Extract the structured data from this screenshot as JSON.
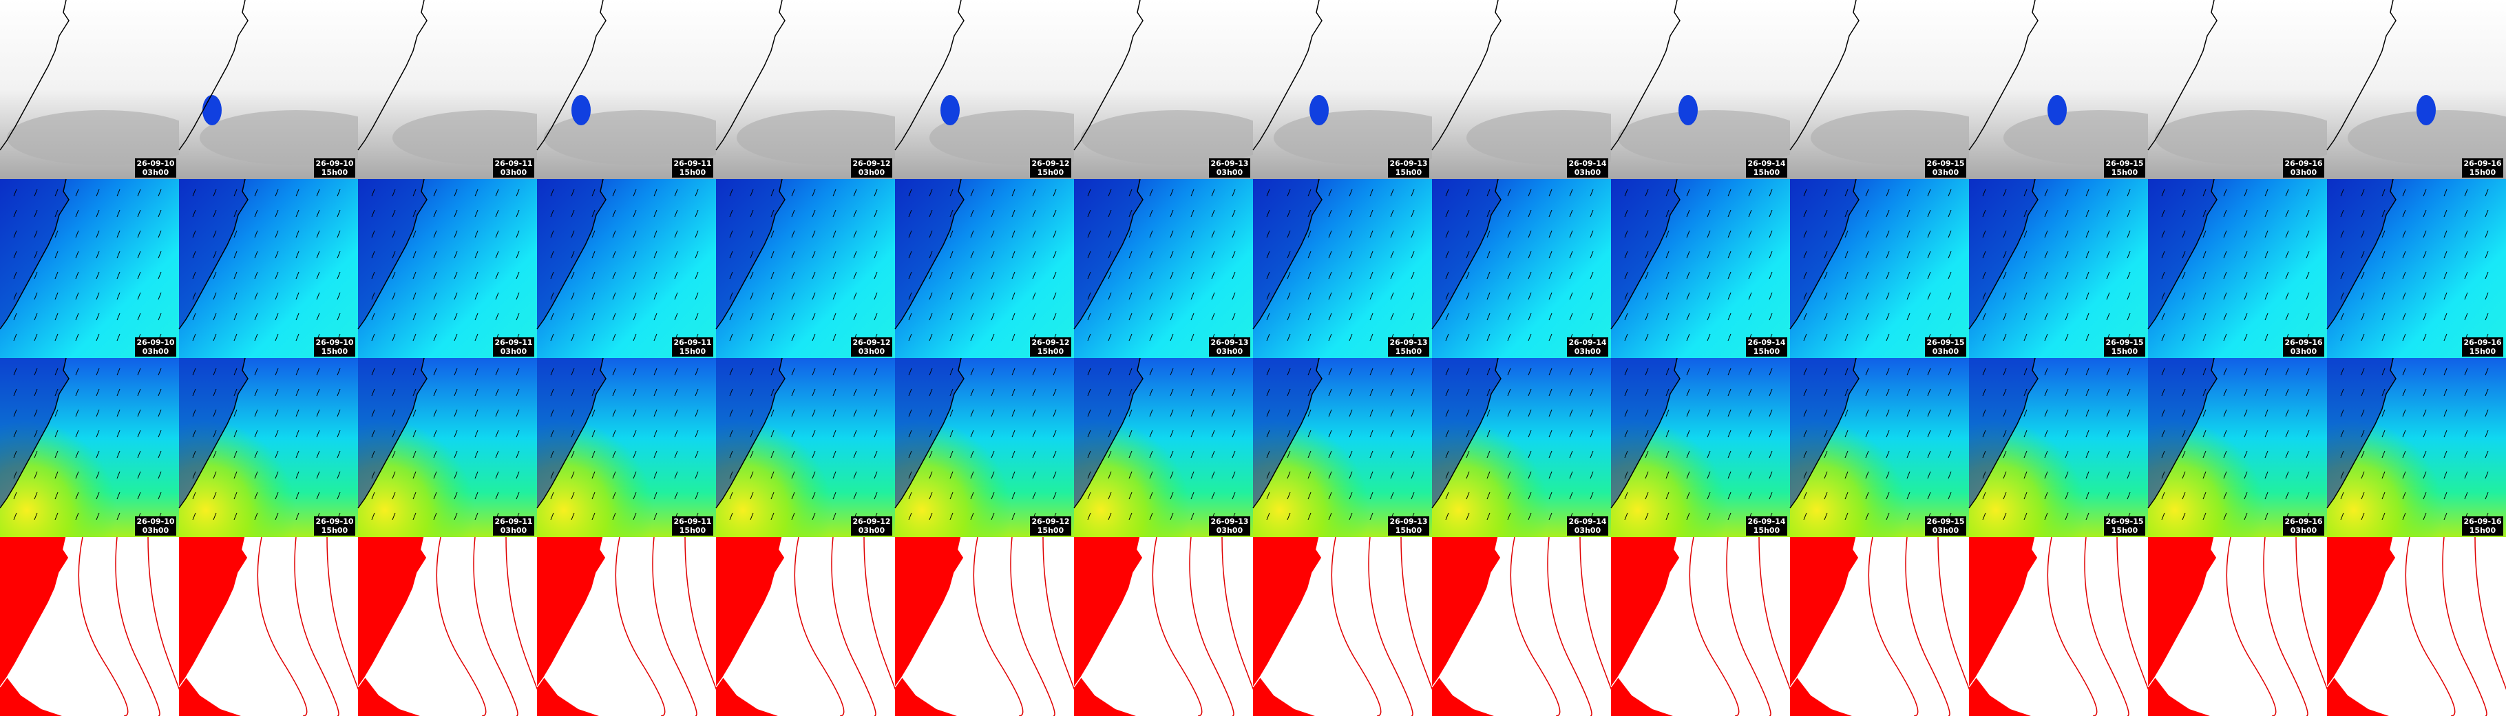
{
  "frames": [
    {
      "date": "26-09-10",
      "time": "03h00"
    },
    {
      "date": "26-09-10",
      "time": "15h00"
    },
    {
      "date": "26-09-11",
      "time": "03h00"
    },
    {
      "date": "26-09-11",
      "time": "15h00"
    },
    {
      "date": "26-09-12",
      "time": "03h00"
    },
    {
      "date": "26-09-12",
      "time": "15h00"
    },
    {
      "date": "26-09-13",
      "time": "03h00"
    },
    {
      "date": "26-09-13",
      "time": "15h00"
    },
    {
      "date": "26-09-14",
      "time": "03h00"
    },
    {
      "date": "26-09-14",
      "time": "15h00"
    },
    {
      "date": "26-09-15",
      "time": "03h00"
    },
    {
      "date": "26-09-15",
      "time": "15h00"
    },
    {
      "date": "26-09-16",
      "time": "03h00"
    },
    {
      "date": "26-09-16",
      "time": "15h00"
    }
  ]
}
